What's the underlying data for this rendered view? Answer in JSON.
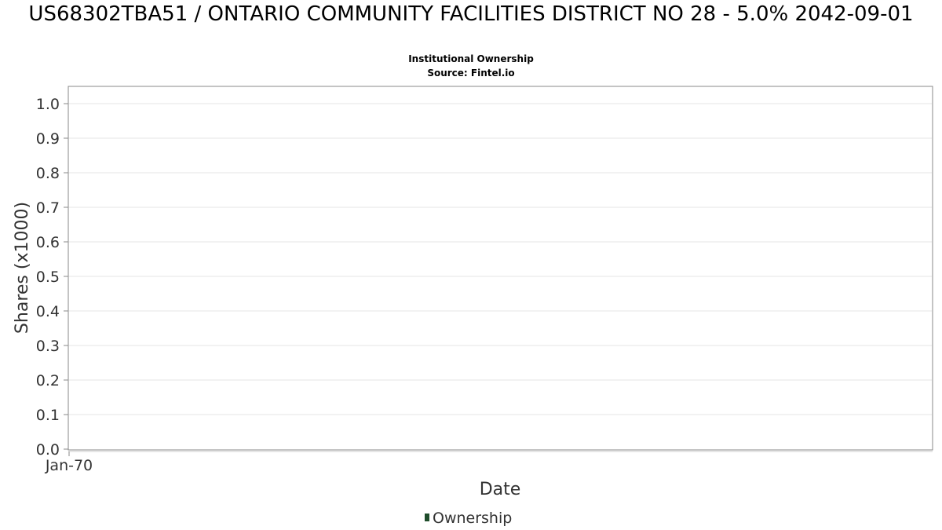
{
  "chart_data": {
    "type": "line",
    "title": "US68302TBA51 / ONTARIO COMMUNITY FACILITIES DISTRICT NO 28 - 5.0% 2042-09-01",
    "subtitle": "Institutional Ownership",
    "source": "Source: Fintel.io",
    "xlabel": "Date",
    "ylabel": "Shares (x1000)",
    "x_ticks": [
      "Jan-70"
    ],
    "y_ticks": [
      "0.0",
      "0.1",
      "0.2",
      "0.3",
      "0.4",
      "0.5",
      "0.6",
      "0.7",
      "0.8",
      "0.9",
      "1.0"
    ],
    "ylim": [
      0,
      1.05
    ],
    "grid": true,
    "legend_position": "bottom",
    "series": [
      {
        "name": "Ownership",
        "color": "#1f4d2b",
        "x": [],
        "values": []
      }
    ]
  }
}
